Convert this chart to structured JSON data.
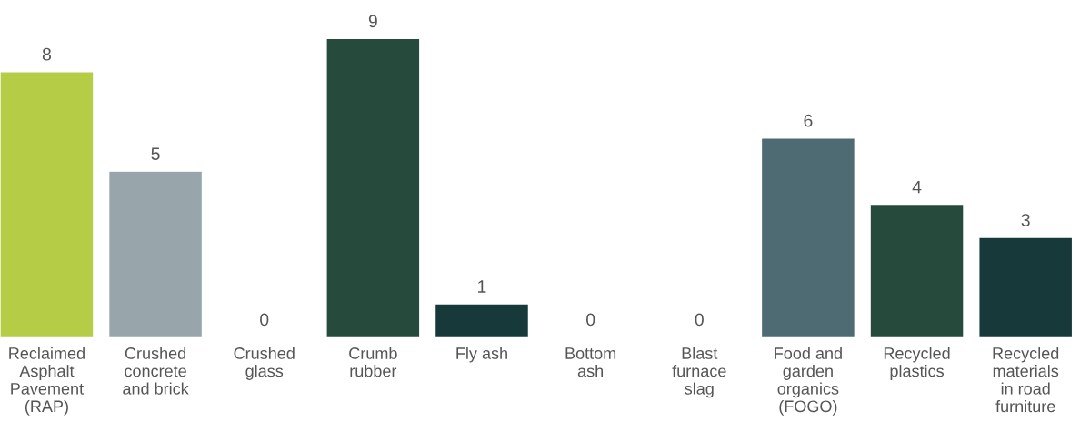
{
  "chart_data": {
    "type": "bar",
    "categories": [
      "Reclaimed\nAsphalt\nPavement\n(RAP)",
      "Crushed\nconcrete\nand brick",
      "Crushed\nglass",
      "Crumb\nrubber",
      "Fly ash",
      "Bottom\nash",
      "Blast\nfurnace\nslag",
      "Food and\ngarden\norganics\n(FOGO)",
      "Recycled\nplastics",
      "Recycled\nmaterials\nin road\nfurniture"
    ],
    "values": [
      8,
      5,
      0,
      9,
      1,
      0,
      0,
      6,
      4,
      3
    ],
    "colors": [
      "#b5cc47",
      "#98a6ab",
      null,
      "#264b3d",
      "#17393a",
      null,
      null,
      "#4e6a73",
      "#264b3d",
      "#17393a"
    ],
    "data_labels": true,
    "grid": false,
    "legend": false
  }
}
